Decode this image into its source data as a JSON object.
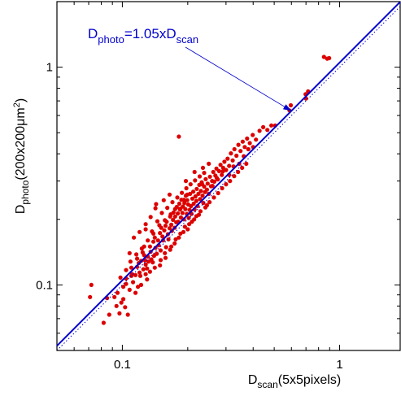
{
  "chart_data": {
    "type": "scatter",
    "title": "",
    "xlabel": {
      "main": "D",
      "sub": "scan",
      "rest": "(5x5pixels)"
    },
    "ylabel": {
      "main": "D",
      "sub": "photo",
      "rest": "(200x200μm",
      "sup": "2",
      "close": ")"
    },
    "xscale": "log",
    "yscale": "log",
    "xlim": [
      0.05,
      1.9
    ],
    "ylim": [
      0.05,
      2.0
    ],
    "x_ticks": [
      {
        "value": 0.1,
        "label": "0.1"
      },
      {
        "value": 1,
        "label": "1"
      }
    ],
    "y_ticks": [
      {
        "value": 0.1,
        "label": "0.1"
      },
      {
        "value": 1,
        "label": "1"
      }
    ],
    "grid": false,
    "fit_line": {
      "slope": 1.05,
      "color": "#0000cc",
      "label": "D_photo=1.05xD_scan"
    },
    "identity_line": {
      "slope": 1.0,
      "style": "dotted",
      "color": "#0000cc"
    },
    "annotation": {
      "parts": [
        {
          "text": "D",
          "style": "normal"
        },
        {
          "text": "photo",
          "style": "sub"
        },
        {
          "text": "=1.05xD",
          "style": "normal"
        },
        {
          "text": "scan",
          "style": "sub"
        }
      ],
      "arrow_to": [
        0.6,
        0.63
      ],
      "color": "#0000cc"
    },
    "point_color": "#dd0000",
    "points": [
      [
        0.072,
        0.1
      ],
      [
        0.071,
        0.088
      ],
      [
        0.082,
        0.067
      ],
      [
        0.087,
        0.073
      ],
      [
        0.085,
        0.087
      ],
      [
        0.092,
        0.088
      ],
      [
        0.094,
        0.08
      ],
      [
        0.097,
        0.074
      ],
      [
        0.099,
        0.083
      ],
      [
        0.103,
        0.079
      ],
      [
        0.106,
        0.073
      ],
      [
        0.101,
        0.098
      ],
      [
        0.104,
        0.101
      ],
      [
        0.108,
        0.095
      ],
      [
        0.11,
        0.11
      ],
      [
        0.104,
        0.107
      ],
      [
        0.112,
        0.103
      ],
      [
        0.115,
        0.111
      ],
      [
        0.118,
        0.098
      ],
      [
        0.117,
        0.121
      ],
      [
        0.12,
        0.114
      ],
      [
        0.121,
        0.11
      ],
      [
        0.122,
        0.129
      ],
      [
        0.125,
        0.118
      ],
      [
        0.127,
        0.13
      ],
      [
        0.124,
        0.141
      ],
      [
        0.128,
        0.124
      ],
      [
        0.13,
        0.119
      ],
      [
        0.131,
        0.135
      ],
      [
        0.132,
        0.128
      ],
      [
        0.134,
        0.15
      ],
      [
        0.135,
        0.142
      ],
      [
        0.136,
        0.131
      ],
      [
        0.138,
        0.127
      ],
      [
        0.139,
        0.158
      ],
      [
        0.14,
        0.136
      ],
      [
        0.141,
        0.165
      ],
      [
        0.142,
        0.148
      ],
      [
        0.144,
        0.139
      ],
      [
        0.146,
        0.16
      ],
      [
        0.147,
        0.152
      ],
      [
        0.149,
        0.173
      ],
      [
        0.15,
        0.144
      ],
      [
        0.151,
        0.183
      ],
      [
        0.153,
        0.167
      ],
      [
        0.154,
        0.16
      ],
      [
        0.156,
        0.178
      ],
      [
        0.158,
        0.187
      ],
      [
        0.159,
        0.149
      ],
      [
        0.16,
        0.195
      ],
      [
        0.162,
        0.171
      ],
      [
        0.163,
        0.162
      ],
      [
        0.165,
        0.182
      ],
      [
        0.166,
        0.206
      ],
      [
        0.168,
        0.189
      ],
      [
        0.169,
        0.177
      ],
      [
        0.171,
        0.199
      ],
      [
        0.172,
        0.215
      ],
      [
        0.174,
        0.183
      ],
      [
        0.175,
        0.206
      ],
      [
        0.177,
        0.194
      ],
      [
        0.178,
        0.228
      ],
      [
        0.18,
        0.213
      ],
      [
        0.181,
        0.195
      ],
      [
        0.183,
        0.236
      ],
      [
        0.184,
        0.222
      ],
      [
        0.186,
        0.204
      ],
      [
        0.187,
        0.246
      ],
      [
        0.189,
        0.214
      ],
      [
        0.19,
        0.229
      ],
      [
        0.192,
        0.2
      ],
      [
        0.193,
        0.238
      ],
      [
        0.195,
        0.223
      ],
      [
        0.196,
        0.257
      ],
      [
        0.198,
        0.212
      ],
      [
        0.199,
        0.245
      ],
      [
        0.201,
        0.234
      ],
      [
        0.202,
        0.203
      ],
      [
        0.204,
        0.221
      ],
      [
        0.205,
        0.262
      ],
      [
        0.207,
        0.23
      ],
      [
        0.208,
        0.212
      ],
      [
        0.21,
        0.249
      ],
      [
        0.212,
        0.268
      ],
      [
        0.213,
        0.236
      ],
      [
        0.215,
        0.222
      ],
      [
        0.217,
        0.255
      ],
      [
        0.219,
        0.243
      ],
      [
        0.22,
        0.276
      ],
      [
        0.222,
        0.23
      ],
      [
        0.224,
        0.262
      ],
      [
        0.226,
        0.288
      ],
      [
        0.228,
        0.248
      ],
      [
        0.23,
        0.27
      ],
      [
        0.232,
        0.296
      ],
      [
        0.234,
        0.257
      ],
      [
        0.236,
        0.238
      ],
      [
        0.238,
        0.283
      ],
      [
        0.24,
        0.267
      ],
      [
        0.242,
        0.306
      ],
      [
        0.245,
        0.274
      ],
      [
        0.247,
        0.292
      ],
      [
        0.25,
        0.262
      ],
      [
        0.253,
        0.314
      ],
      [
        0.256,
        0.284
      ],
      [
        0.259,
        0.3
      ],
      [
        0.262,
        0.33
      ],
      [
        0.265,
        0.298
      ],
      [
        0.268,
        0.318
      ],
      [
        0.271,
        0.342
      ],
      [
        0.275,
        0.305
      ],
      [
        0.279,
        0.333
      ],
      [
        0.283,
        0.356
      ],
      [
        0.287,
        0.32
      ],
      [
        0.291,
        0.345
      ],
      [
        0.295,
        0.368
      ],
      [
        0.3,
        0.337
      ],
      [
        0.305,
        0.38
      ],
      [
        0.31,
        0.352
      ],
      [
        0.316,
        0.402
      ],
      [
        0.322,
        0.373
      ],
      [
        0.328,
        0.42
      ],
      [
        0.335,
        0.392
      ],
      [
        0.342,
        0.44
      ],
      [
        0.35,
        0.412
      ],
      [
        0.358,
        0.455
      ],
      [
        0.366,
        0.43
      ],
      [
        0.375,
        0.47
      ],
      [
        0.386,
        0.448
      ],
      [
        0.398,
        0.488
      ],
      [
        0.412,
        0.465
      ],
      [
        0.428,
        0.51
      ],
      [
        0.445,
        0.53
      ],
      [
        0.465,
        0.515
      ],
      [
        0.485,
        0.54
      ],
      [
        0.505,
        0.54
      ],
      [
        0.12,
        0.175
      ],
      [
        0.128,
        0.19
      ],
      [
        0.135,
        0.205
      ],
      [
        0.142,
        0.225
      ],
      [
        0.155,
        0.245
      ],
      [
        0.165,
        0.26
      ],
      [
        0.158,
        0.133
      ],
      [
        0.149,
        0.123
      ],
      [
        0.168,
        0.15
      ],
      [
        0.176,
        0.162
      ],
      [
        0.185,
        0.172
      ],
      [
        0.194,
        0.185
      ],
      [
        0.203,
        0.19
      ],
      [
        0.214,
        0.2
      ],
      [
        0.225,
        0.21
      ],
      [
        0.245,
        0.232
      ],
      [
        0.113,
        0.165
      ],
      [
        0.108,
        0.14
      ],
      [
        0.117,
        0.132
      ],
      [
        0.126,
        0.15
      ],
      [
        0.137,
        0.176
      ],
      [
        0.145,
        0.196
      ],
      [
        0.152,
        0.214
      ],
      [
        0.161,
        0.226
      ],
      [
        0.17,
        0.24
      ],
      [
        0.179,
        0.252
      ],
      [
        0.188,
        0.265
      ],
      [
        0.197,
        0.278
      ],
      [
        0.206,
        0.29
      ],
      [
        0.216,
        0.302
      ],
      [
        0.227,
        0.315
      ],
      [
        0.238,
        0.327
      ],
      [
        0.128,
        0.112
      ],
      [
        0.134,
        0.115
      ],
      [
        0.141,
        0.12
      ],
      [
        0.15,
        0.13
      ],
      [
        0.157,
        0.14
      ],
      [
        0.166,
        0.145
      ],
      [
        0.174,
        0.155
      ],
      [
        0.182,
        0.165
      ],
      [
        0.191,
        0.175
      ],
      [
        0.2,
        0.18
      ],
      [
        0.209,
        0.195
      ],
      [
        0.219,
        0.207
      ],
      [
        0.229,
        0.218
      ],
      [
        0.241,
        0.227
      ],
      [
        0.252,
        0.24
      ],
      [
        0.264,
        0.252
      ],
      [
        0.276,
        0.264
      ],
      [
        0.288,
        0.278
      ],
      [
        0.3,
        0.29
      ],
      [
        0.313,
        0.3
      ],
      [
        0.327,
        0.316
      ],
      [
        0.341,
        0.33
      ],
      [
        0.356,
        0.345
      ],
      [
        0.372,
        0.36
      ],
      [
        0.182,
        0.48
      ],
      [
        0.143,
        0.235
      ],
      [
        0.128,
        0.18
      ],
      [
        0.11,
        0.12
      ],
      [
        0.098,
        0.108
      ],
      [
        0.095,
        0.092
      ],
      [
        0.101,
        0.086
      ],
      [
        0.115,
        0.092
      ],
      [
        0.122,
        0.1
      ],
      [
        0.13,
        0.106
      ],
      [
        0.196,
        0.3
      ],
      [
        0.215,
        0.33
      ],
      [
        0.235,
        0.345
      ],
      [
        0.25,
        0.36
      ],
      [
        0.233,
        0.29
      ],
      [
        0.26,
        0.285
      ],
      [
        0.272,
        0.31
      ],
      [
        0.29,
        0.332
      ],
      [
        0.31,
        0.32
      ],
      [
        0.325,
        0.35
      ],
      [
        0.345,
        0.36
      ],
      [
        0.362,
        0.39
      ],
      [
        0.38,
        0.42
      ],
      [
        0.4,
        0.43
      ],
      [
        0.185,
        0.224
      ],
      [
        0.192,
        0.246
      ],
      [
        0.199,
        0.26
      ],
      [
        0.175,
        0.223
      ],
      [
        0.167,
        0.211
      ],
      [
        0.157,
        0.198
      ],
      [
        0.148,
        0.188
      ],
      [
        0.139,
        0.172
      ],
      [
        0.131,
        0.16
      ],
      [
        0.123,
        0.147
      ],
      [
        0.116,
        0.138
      ],
      [
        0.109,
        0.128
      ],
      [
        0.104,
        0.117
      ],
      [
        0.111,
        0.112
      ],
      [
        0.119,
        0.126
      ],
      [
        0.126,
        0.137
      ],
      [
        0.588,
        0.633
      ],
      [
        0.596,
        0.668
      ],
      [
        0.7,
        0.718
      ],
      [
        0.716,
        0.775
      ],
      [
        0.697,
        0.751
      ],
      [
        0.847,
        1.115
      ],
      [
        0.877,
        1.095
      ],
      [
        0.895,
        1.1
      ]
    ]
  }
}
